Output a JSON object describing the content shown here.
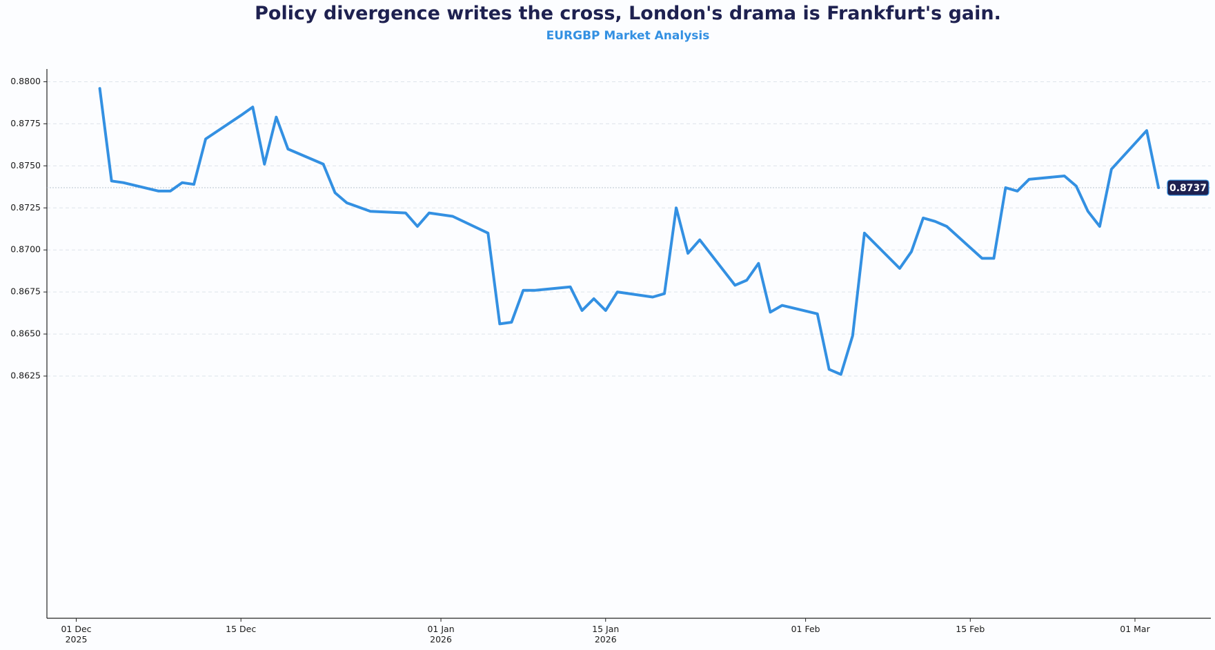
{
  "chart_data": {
    "type": "line",
    "title": "Policy divergence writes the cross, London's drama is Frankfurt's gain.",
    "subtitle": "EURGBP Market Analysis",
    "xlabel": "",
    "ylabel": "",
    "ylim": [
      0.8618,
      0.8804
    ],
    "yticks": [
      "0.8800",
      "0.8775",
      "0.8750",
      "0.8725",
      "0.8700",
      "0.8675",
      "0.8650",
      "0.8625"
    ],
    "xticks": [
      {
        "date": "2025-12-01",
        "label": "01 Dec",
        "sub": "2025"
      },
      {
        "date": "2025-12-15",
        "label": "15 Dec",
        "sub": ""
      },
      {
        "date": "2026-01-01",
        "label": "01 Jan",
        "sub": "2026"
      },
      {
        "date": "2026-01-15",
        "label": "15 Jan",
        "sub": "2026"
      },
      {
        "date": "2026-02-01",
        "label": "01 Feb",
        "sub": ""
      },
      {
        "date": "2026-02-15",
        "label": "15 Feb",
        "sub": ""
      },
      {
        "date": "2026-03-01",
        "label": "01 Mar",
        "sub": ""
      }
    ],
    "grid": true,
    "color": "#3390e2",
    "last_value_label": "0.8737",
    "series": [
      {
        "dates": [
          "2025-12-03",
          "2025-12-04",
          "2025-12-05",
          "2025-12-08",
          "2025-12-09",
          "2025-12-10",
          "2025-12-11",
          "2025-12-12",
          "2025-12-15",
          "2025-12-16",
          "2025-12-17",
          "2025-12-18",
          "2025-12-19",
          "2025-12-22",
          "2025-12-23",
          "2025-12-24",
          "2025-12-26",
          "2025-12-29",
          "2025-12-30",
          "2025-12-31",
          "2026-01-02",
          "2026-01-05",
          "2026-01-06",
          "2026-01-07",
          "2026-01-08",
          "2026-01-09",
          "2026-01-12",
          "2026-01-13",
          "2026-01-14",
          "2026-01-15",
          "2026-01-16",
          "2026-01-19",
          "2026-01-20",
          "2026-01-21",
          "2026-01-22",
          "2026-01-23",
          "2026-01-26",
          "2026-01-27",
          "2026-01-28",
          "2026-01-29",
          "2026-01-30",
          "2026-02-02",
          "2026-02-03",
          "2026-02-04",
          "2026-02-05",
          "2026-02-06",
          "2026-02-09",
          "2026-02-10",
          "2026-02-11",
          "2026-02-12",
          "2026-02-13",
          "2026-02-16",
          "2026-02-17",
          "2026-02-18",
          "2026-02-19",
          "2026-02-20",
          "2026-02-23",
          "2026-02-24",
          "2026-02-25",
          "2026-02-26",
          "2026-02-27",
          "2026-03-02",
          "2026-03-03"
        ],
        "values": [
          0.8796,
          0.8741,
          0.874,
          0.8735,
          0.8735,
          0.874,
          0.8739,
          0.8766,
          0.878,
          0.8785,
          0.8751,
          0.8779,
          0.876,
          0.8751,
          0.8734,
          0.8728,
          0.8723,
          0.8722,
          0.8714,
          0.8722,
          0.872,
          0.871,
          0.8656,
          0.8657,
          0.8676,
          0.8676,
          0.8678,
          0.8664,
          0.8671,
          0.8664,
          0.8675,
          0.8672,
          0.8674,
          0.8725,
          0.8698,
          0.8706,
          0.8679,
          0.8682,
          0.8692,
          0.8663,
          0.8667,
          0.8662,
          0.8629,
          0.8626,
          0.8649,
          0.871,
          0.8689,
          0.8699,
          0.8719,
          0.8717,
          0.8714,
          0.8695,
          0.8695,
          0.8737,
          0.8735,
          0.8742,
          0.8744,
          0.8738,
          0.8723,
          0.8714,
          0.8748,
          0.8771,
          0.8737
        ]
      }
    ]
  }
}
